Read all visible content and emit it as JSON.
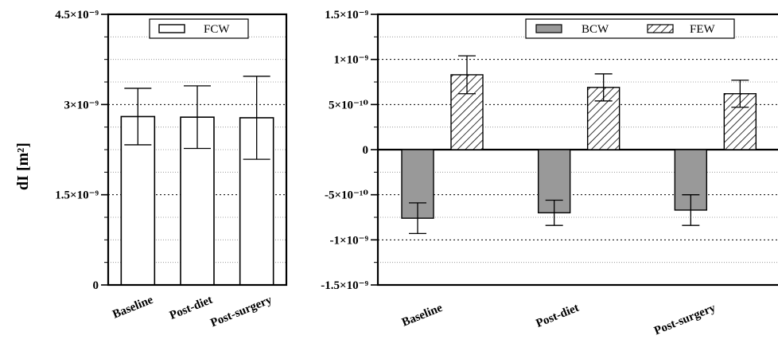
{
  "chart_data": [
    {
      "type": "bar",
      "panel": "left",
      "ylabel": "dI [m²]",
      "ylim": [
        0,
        4.5e-09
      ],
      "y_ticks": [
        {
          "value": 0,
          "label": "0"
        },
        {
          "value": 1.5e-09,
          "label": "1.5×10⁻⁹"
        },
        {
          "value": 3e-09,
          "label": "3×10⁻⁹"
        },
        {
          "value": 4.5e-09,
          "label": "4.5×10⁻⁹"
        }
      ],
      "categories": [
        "Baseline",
        "Post-diet",
        "Post-surgery"
      ],
      "series": [
        {
          "name": "FCW",
          "values": [
            2.8e-09,
            2.79e-09,
            2.78e-09
          ],
          "error": [
            4.7e-10,
            5.2e-10,
            6.9e-10
          ]
        }
      ],
      "grid": "dotted horizontal",
      "legend_position": "top"
    },
    {
      "type": "bar",
      "panel": "right",
      "ylim": [
        -1.5e-09,
        1.5e-09
      ],
      "y_ticks": [
        {
          "value": -1.5e-09,
          "label": "-1.5×10⁻⁹"
        },
        {
          "value": -1e-09,
          "label": "-1×10⁻⁹"
        },
        {
          "value": -5e-10,
          "label": "-5×10⁻¹⁰"
        },
        {
          "value": 0,
          "label": "0"
        },
        {
          "value": 5e-10,
          "label": "5×10⁻¹⁰"
        },
        {
          "value": 1e-09,
          "label": "1×10⁻⁹"
        },
        {
          "value": 1.5e-09,
          "label": "1.5×10⁻⁹"
        }
      ],
      "categories": [
        "Baseline",
        "Post-diet",
        "Post-surgery"
      ],
      "series": [
        {
          "name": "BCW",
          "values": [
            -7.6e-10,
            -7e-10,
            -6.7e-10
          ],
          "error": [
            1.7e-10,
            1.4e-10,
            1.7e-10
          ],
          "fill": "#999999"
        },
        {
          "name": "FEW",
          "values": [
            8.3e-10,
            6.9e-10,
            6.2e-10
          ],
          "error": [
            2.1e-10,
            1.5e-10,
            1.5e-10
          ],
          "fill": "hatched"
        }
      ],
      "grid": "dotted horizontal",
      "legend_position": "top-right"
    }
  ]
}
